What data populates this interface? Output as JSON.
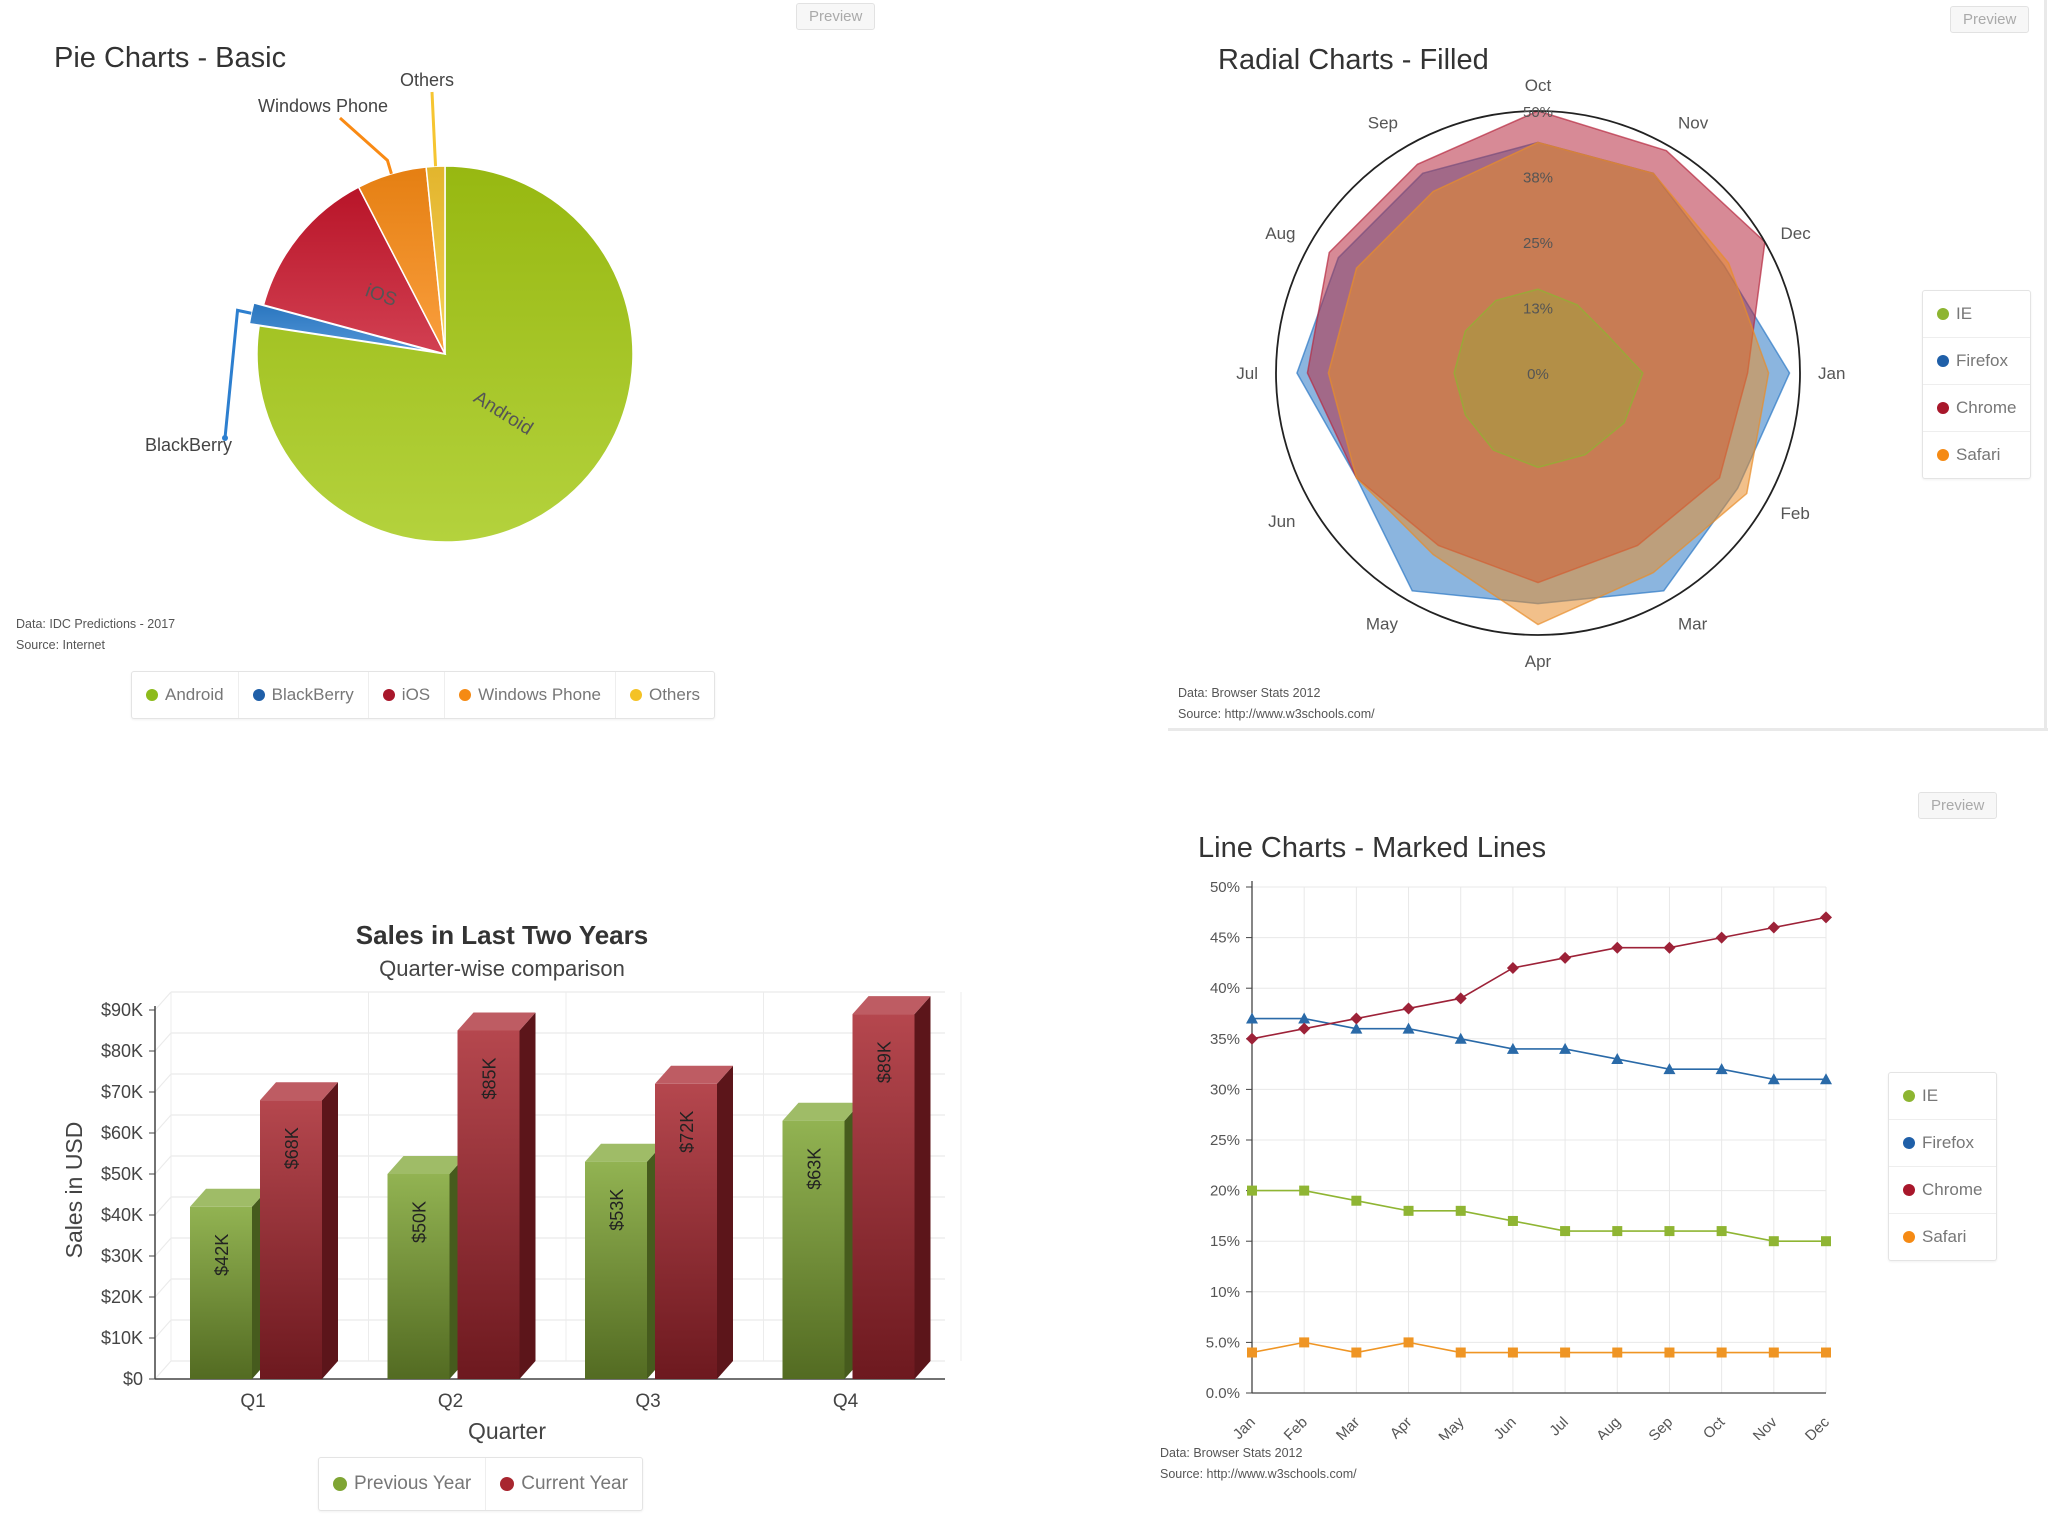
{
  "preview_label": "Preview",
  "chart_data": [
    {
      "id": "pie",
      "type": "pie",
      "title": "Pie Charts - Basic",
      "slices": [
        {
          "name": "Android",
          "value": 77.4,
          "color": "#a4c812",
          "label": "Android"
        },
        {
          "name": "BlackBerry",
          "value": 1.8,
          "color": "#2d7fcf",
          "label": "BlackBerry"
        },
        {
          "name": "iOS",
          "value": 13.2,
          "color": "#c8162c",
          "label": "iOS"
        },
        {
          "name": "Windows Phone",
          "value": 6.0,
          "color": "#f98a14",
          "label": "Windows Phone"
        },
        {
          "name": "Others",
          "value": 1.6,
          "color": "#f6c531",
          "label": "Others"
        }
      ],
      "credits": [
        "Data: IDC Predictions - 2017",
        "Source: Internet"
      ],
      "legend": [
        "Android",
        "BlackBerry",
        "iOS",
        "Windows Phone",
        "Others"
      ]
    },
    {
      "id": "radar",
      "type": "radar",
      "title": "Radial Charts - Filled",
      "categories": [
        "Oct",
        "Nov",
        "Dec",
        "Jan",
        "Feb",
        "Mar",
        "Apr",
        "May",
        "Jun",
        "Jul",
        "Aug",
        "Sep"
      ],
      "ticks": [
        "0%",
        "13%",
        "25%",
        "38%",
        "50%"
      ],
      "max": 50,
      "series": [
        {
          "name": "IE",
          "color": "#8db531",
          "values": [
            16,
            15,
            15,
            20,
            19,
            18,
            18,
            17,
            16,
            16,
            16,
            16
          ]
        },
        {
          "name": "Firefox",
          "color": "#2b78c4",
          "values": [
            44,
            44,
            41,
            48,
            44,
            48,
            44,
            48,
            40,
            46,
            44,
            44
          ]
        },
        {
          "name": "Chrome",
          "color": "#b62940",
          "values": [
            50,
            49,
            50,
            40,
            40,
            38,
            40,
            38,
            40,
            44,
            46,
            46
          ]
        },
        {
          "name": "Safari",
          "color": "#e88d2a",
          "values": [
            44,
            44,
            42,
            44,
            46,
            44,
            48,
            40,
            40,
            40,
            40,
            40
          ]
        }
      ],
      "credits": [
        "Data: Browser Stats 2012",
        "Source: http://www.w3schools.com/"
      ],
      "legend": [
        "IE",
        "Firefox",
        "Chrome",
        "Safari"
      ]
    },
    {
      "id": "bar",
      "type": "bar",
      "title": "Sales in Last Two Years",
      "subtitle": "Quarter-wise comparison",
      "xlabel": "Quarter",
      "ylabel": "Sales in USD",
      "categories": [
        "Q1",
        "Q2",
        "Q3",
        "Q4"
      ],
      "ylim": [
        0,
        90
      ],
      "yticks": [
        "$0",
        "$10K",
        "$20K",
        "$30K",
        "$40K",
        "$50K",
        "$60K",
        "$70K",
        "$80K",
        "$90K"
      ],
      "series": [
        {
          "name": "Previous Year",
          "color": "#7fa534",
          "values": [
            42,
            50,
            53,
            63
          ],
          "labels": [
            "$42K",
            "$50K",
            "$53K",
            "$63K"
          ]
        },
        {
          "name": "Current Year",
          "color": "#a8262f",
          "values": [
            68,
            85,
            72,
            89
          ],
          "labels": [
            "$68K",
            "$85K",
            "$72K",
            "$89K"
          ]
        }
      ],
      "legend": [
        "Previous Year",
        "Current Year"
      ]
    },
    {
      "id": "line",
      "type": "line",
      "title": "Line Charts - Marked Lines",
      "categories": [
        "Jan",
        "Feb",
        "Mar",
        "Apr",
        "May",
        "Jun",
        "Jul",
        "Aug",
        "Sep",
        "Oct",
        "Nov",
        "Dec"
      ],
      "ylim": [
        0,
        50
      ],
      "yticks": [
        "0.0%",
        "5.0%",
        "10%",
        "15%",
        "20%",
        "25%",
        "30%",
        "35%",
        "40%",
        "45%",
        "50%"
      ],
      "series": [
        {
          "name": "IE",
          "color": "#8fb533",
          "marker": "square",
          "values": [
            20,
            20,
            19,
            18,
            18,
            17,
            16,
            16,
            16,
            16,
            15,
            15
          ]
        },
        {
          "name": "Firefox",
          "color": "#2a6aa8",
          "marker": "triangle",
          "values": [
            37,
            37,
            36,
            36,
            35,
            34,
            34,
            33,
            32,
            32,
            31,
            31
          ]
        },
        {
          "name": "Chrome",
          "color": "#9d2238",
          "marker": "diamond",
          "values": [
            35,
            36,
            37,
            38,
            39,
            42,
            43,
            44,
            44,
            45,
            46,
            47
          ]
        },
        {
          "name": "Safari",
          "color": "#ef9524",
          "marker": "square",
          "values": [
            4,
            5,
            4,
            5,
            4,
            4,
            4,
            4,
            4,
            4,
            4,
            4
          ]
        }
      ],
      "credits": [
        "Data: Browser Stats 2012",
        "Source: http://www.w3schools.com/"
      ],
      "legend": [
        "IE",
        "Firefox",
        "Chrome",
        "Safari"
      ]
    }
  ]
}
